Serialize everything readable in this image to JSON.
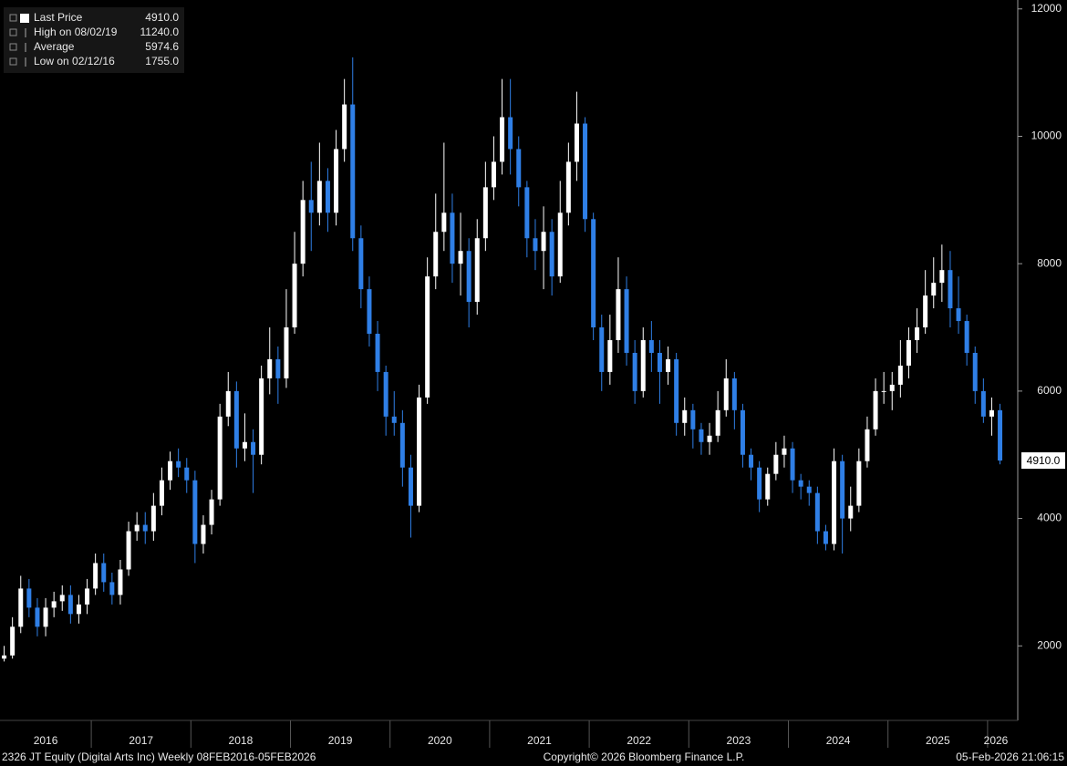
{
  "chart_data": {
    "type": "candlestick",
    "legend": [
      {
        "name": "Last Price",
        "value": 4910,
        "value_label": "4910.0"
      },
      {
        "name": "High on 08/02/19",
        "value": 11240,
        "value_label": "11240.0"
      },
      {
        "name": "Average",
        "value": 5974.6,
        "value_label": "5974.6"
      },
      {
        "name": "Low on 02/12/16",
        "value": 1755,
        "value_label": "1755.0"
      }
    ],
    "x_labels": [
      "2016",
      "2017",
      "2018",
      "2019",
      "2020",
      "2021",
      "2022",
      "2023",
      "2024",
      "2025",
      "2026"
    ],
    "up_color": "#ffffff",
    "down_color": "#2f7fe6",
    "ylim": [
      830,
      12140
    ],
    "yticks": [
      2000,
      4000,
      6000,
      8000,
      10000,
      12000
    ],
    "grid": false,
    "open": [
      1800,
      1850,
      2300,
      2900,
      2600,
      2300,
      2600,
      2700,
      2800,
      2500,
      2650,
      2900,
      3300,
      3000,
      2800,
      3200,
      3800,
      3900,
      3800,
      4200,
      4600,
      4900,
      4800,
      4600,
      3600,
      3900,
      4300,
      5600,
      6000,
      5100,
      5200,
      5000,
      6200,
      6500,
      6200,
      7000,
      8000,
      9000,
      8800,
      9300,
      8800,
      9800,
      10500,
      8400,
      7600,
      6900,
      6300,
      5600,
      5500,
      4800,
      4200,
      5900,
      7800,
      8500,
      8800,
      8000,
      8200,
      7400,
      8400,
      9200,
      9600,
      10300,
      9800,
      9200,
      8400,
      8200,
      8500,
      7800,
      8800,
      9600,
      10200,
      8700,
      7000,
      6300,
      6800,
      7600,
      6600,
      6000,
      6800,
      6600,
      6300,
      6500,
      5500,
      5700,
      5400,
      5200,
      5300,
      5700,
      6200,
      5700,
      5000,
      4800,
      4300,
      4700,
      5000,
      5100,
      4600,
      4500,
      4400,
      3800,
      3600,
      4900,
      4000,
      4200,
      4900,
      5400,
      6000,
      6000,
      6100,
      6400,
      6800,
      7000,
      7500,
      7700,
      7900,
      7300,
      7100,
      6600,
      6000,
      5600,
      5700
    ],
    "high": [
      2000,
      2450,
      3100,
      3050,
      2750,
      2750,
      2850,
      2950,
      2950,
      2800,
      3050,
      3450,
      3450,
      3150,
      3350,
      3950,
      4100,
      4100,
      4400,
      4800,
      5050,
      5100,
      4950,
      4750,
      4050,
      4450,
      5800,
      6300,
      6150,
      5650,
      5400,
      6400,
      7000,
      6700,
      7600,
      8500,
      9300,
      9600,
      9900,
      9500,
      10100,
      10900,
      11240,
      8600,
      7800,
      7100,
      6400,
      6000,
      5700,
      5000,
      6100,
      8100,
      9100,
      9900,
      9100,
      8800,
      8400,
      8700,
      9600,
      10000,
      10900,
      10900,
      10000,
      9300,
      8700,
      8900,
      8700,
      9300,
      9900,
      10700,
      10300,
      8800,
      7200,
      7200,
      8100,
      7800,
      6800,
      7000,
      7100,
      6800,
      6700,
      6600,
      5900,
      5800,
      5500,
      5500,
      6000,
      6500,
      6300,
      5800,
      5100,
      4900,
      4800,
      5200,
      5300,
      5200,
      4700,
      4600,
      4500,
      3900,
      5100,
      5000,
      4500,
      5100,
      5600,
      6200,
      6300,
      6300,
      6800,
      7000,
      7300,
      7900,
      8100,
      8300,
      8200,
      7800,
      7200,
      6700,
      6200,
      5900,
      5800
    ],
    "low": [
      1755,
      1800,
      2200,
      2450,
      2150,
      2150,
      2450,
      2550,
      2350,
      2350,
      2500,
      2800,
      2850,
      2650,
      2650,
      3100,
      3650,
      3600,
      3650,
      4050,
      4450,
      4650,
      4400,
      3300,
      3450,
      3750,
      4200,
      5450,
      4800,
      4900,
      4400,
      4850,
      5950,
      5800,
      6050,
      6900,
      7800,
      8200,
      8600,
      8500,
      8600,
      9600,
      8200,
      7300,
      6700,
      6000,
      5300,
      5300,
      4500,
      3700,
      4100,
      5800,
      7600,
      8200,
      7700,
      7500,
      7000,
      7200,
      8200,
      9000,
      9400,
      9400,
      8900,
      8100,
      7900,
      7600,
      7500,
      7700,
      8600,
      9300,
      8500,
      6800,
      6000,
      6100,
      6600,
      6400,
      5800,
      5900,
      6300,
      5800,
      6100,
      5300,
      5300,
      5100,
      5000,
      5000,
      5200,
      5600,
      5400,
      4800,
      4600,
      4100,
      4200,
      4600,
      4800,
      4400,
      4300,
      4200,
      3600,
      3500,
      3500,
      3450,
      3800,
      4100,
      4800,
      5300,
      5800,
      5700,
      5900,
      6200,
      6600,
      6900,
      7300,
      7400,
      7000,
      6900,
      6400,
      5800,
      5500,
      5300,
      4850
    ],
    "close": [
      1850,
      2300,
      2900,
      2600,
      2300,
      2600,
      2700,
      2800,
      2500,
      2650,
      2900,
      3300,
      3000,
      2800,
      3200,
      3800,
      3900,
      3800,
      4200,
      4600,
      4900,
      4800,
      4600,
      3600,
      3900,
      4300,
      5600,
      6000,
      5100,
      5200,
      5000,
      6200,
      6500,
      6200,
      7000,
      8000,
      9000,
      8800,
      9300,
      8800,
      9800,
      10500,
      8400,
      7600,
      6900,
      6300,
      5600,
      5500,
      4800,
      4200,
      5900,
      7800,
      8500,
      8800,
      8000,
      8200,
      7400,
      8400,
      9200,
      9600,
      10300,
      9800,
      9200,
      8400,
      8200,
      8500,
      7800,
      8800,
      9600,
      10200,
      8700,
      7000,
      6300,
      6800,
      7600,
      6600,
      6000,
      6800,
      6600,
      6300,
      6500,
      5500,
      5700,
      5400,
      5200,
      5300,
      5700,
      6200,
      5700,
      5000,
      4800,
      4300,
      4700,
      5000,
      5100,
      4600,
      4500,
      4400,
      3800,
      3600,
      4900,
      4000,
      4200,
      4900,
      5400,
      6000,
      6000,
      6100,
      6400,
      6800,
      7000,
      7500,
      7700,
      7900,
      7300,
      7100,
      6600,
      6000,
      5600,
      5700,
      4910
    ]
  },
  "footer": {
    "left": "2326 JT Equity (Digital Arts Inc) Weekly 08FEB2016-05FEB2026",
    "center": "Copyright© 2026 Bloomberg Finance L.P.",
    "right": "05-Feb-2026 21:06:15"
  }
}
